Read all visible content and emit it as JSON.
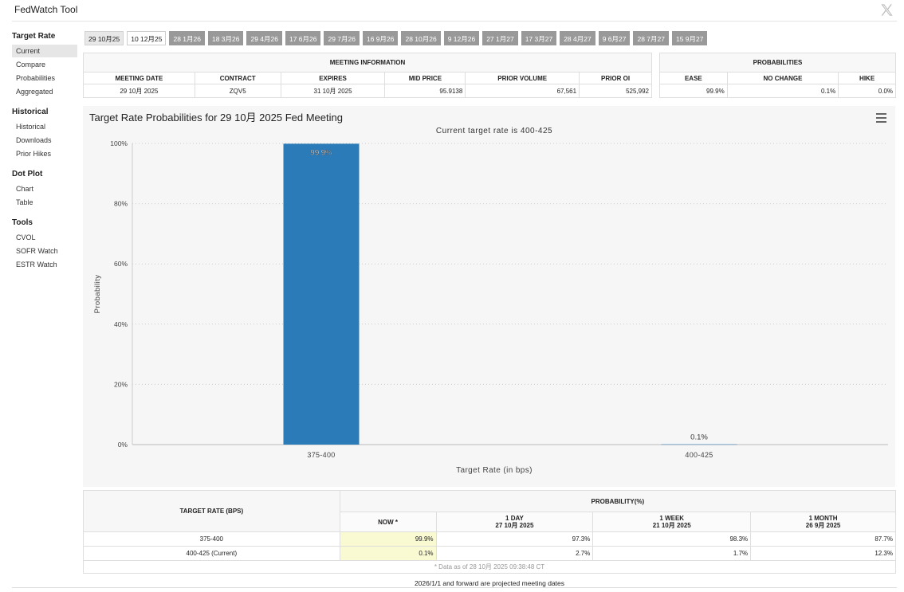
{
  "app": {
    "title": "FedWatch Tool"
  },
  "sidebar": {
    "sections": [
      {
        "head": "Target Rate",
        "items": [
          "Current",
          "Compare",
          "Probabilities",
          "Aggregated"
        ]
      },
      {
        "head": "Historical",
        "items": [
          "Historical",
          "Downloads",
          "Prior Hikes"
        ]
      },
      {
        "head": "Dot Plot",
        "items": [
          "Chart",
          "Table"
        ]
      },
      {
        "head": "Tools",
        "items": [
          "CVOL",
          "SOFR Watch",
          "ESTR Watch"
        ]
      }
    ],
    "active": "Current"
  },
  "tabs": [
    "29 10月25",
    "10 12月25",
    "28 1月26",
    "18 3月26",
    "29 4月26",
    "17 6月26",
    "29 7月26",
    "16 9月26",
    "28 10月26",
    "9 12月26",
    "27 1月27",
    "17 3月27",
    "28 4月27",
    "9 6月27",
    "28 7月27",
    "15 9月27"
  ],
  "meeting_info": {
    "caption": "MEETING INFORMATION",
    "headers": [
      "MEETING DATE",
      "CONTRACT",
      "EXPIRES",
      "MID PRICE",
      "PRIOR VOLUME",
      "PRIOR OI"
    ],
    "values": [
      "29 10月 2025",
      "ZQV5",
      "31 10月 2025",
      "95.9138",
      "67,561",
      "525,992"
    ]
  },
  "probabilities": {
    "caption": "PROBABILITIES",
    "headers": [
      "EASE",
      "NO CHANGE",
      "HIKE"
    ],
    "values": [
      "99.9%",
      "0.1%",
      "0.0%"
    ]
  },
  "chart": {
    "title": "Target Rate Probabilities for 29 10月 2025 Fed Meeting",
    "subtitle": "Current target rate is 400-425",
    "menu_icon": "hamburger-menu-icon",
    "bar_color": "#2b7bb9"
  },
  "chart_data": {
    "type": "bar",
    "title": "Target Rate Probabilities for 29 10月 2025 Fed Meeting",
    "subtitle": "Current target rate is 400-425",
    "categories": [
      "375-400",
      "400-425"
    ],
    "values": [
      99.9,
      0.1
    ],
    "data_labels": [
      "99.9%",
      "0.1%"
    ],
    "xlabel": "Target Rate (in bps)",
    "ylabel": "Probability",
    "ylim": [
      0,
      100
    ],
    "yticks": [
      "0%",
      "20%",
      "40%",
      "60%",
      "80%",
      "100%"
    ],
    "grid": true
  },
  "prob_table": {
    "col_head": "TARGET RATE (BPS)",
    "prob_head": "PROBABILITY(%)",
    "periods": [
      {
        "label": "NOW *",
        "date": ""
      },
      {
        "label": "1 DAY",
        "date": "27 10月 2025"
      },
      {
        "label": "1 WEEK",
        "date": "21 10月 2025"
      },
      {
        "label": "1 MONTH",
        "date": "26 9月 2025"
      }
    ],
    "rows": [
      {
        "rate": "375-400",
        "vals": [
          "99.9%",
          "97.3%",
          "98.3%",
          "87.7%"
        ]
      },
      {
        "rate": "400-425 (Current)",
        "vals": [
          "0.1%",
          "2.7%",
          "1.7%",
          "12.3%"
        ]
      }
    ],
    "note": "* Data as of 28 10月 2025 09:38:48 CT"
  },
  "footer": {
    "note": "2026/1/1 and forward are projected meeting dates"
  }
}
